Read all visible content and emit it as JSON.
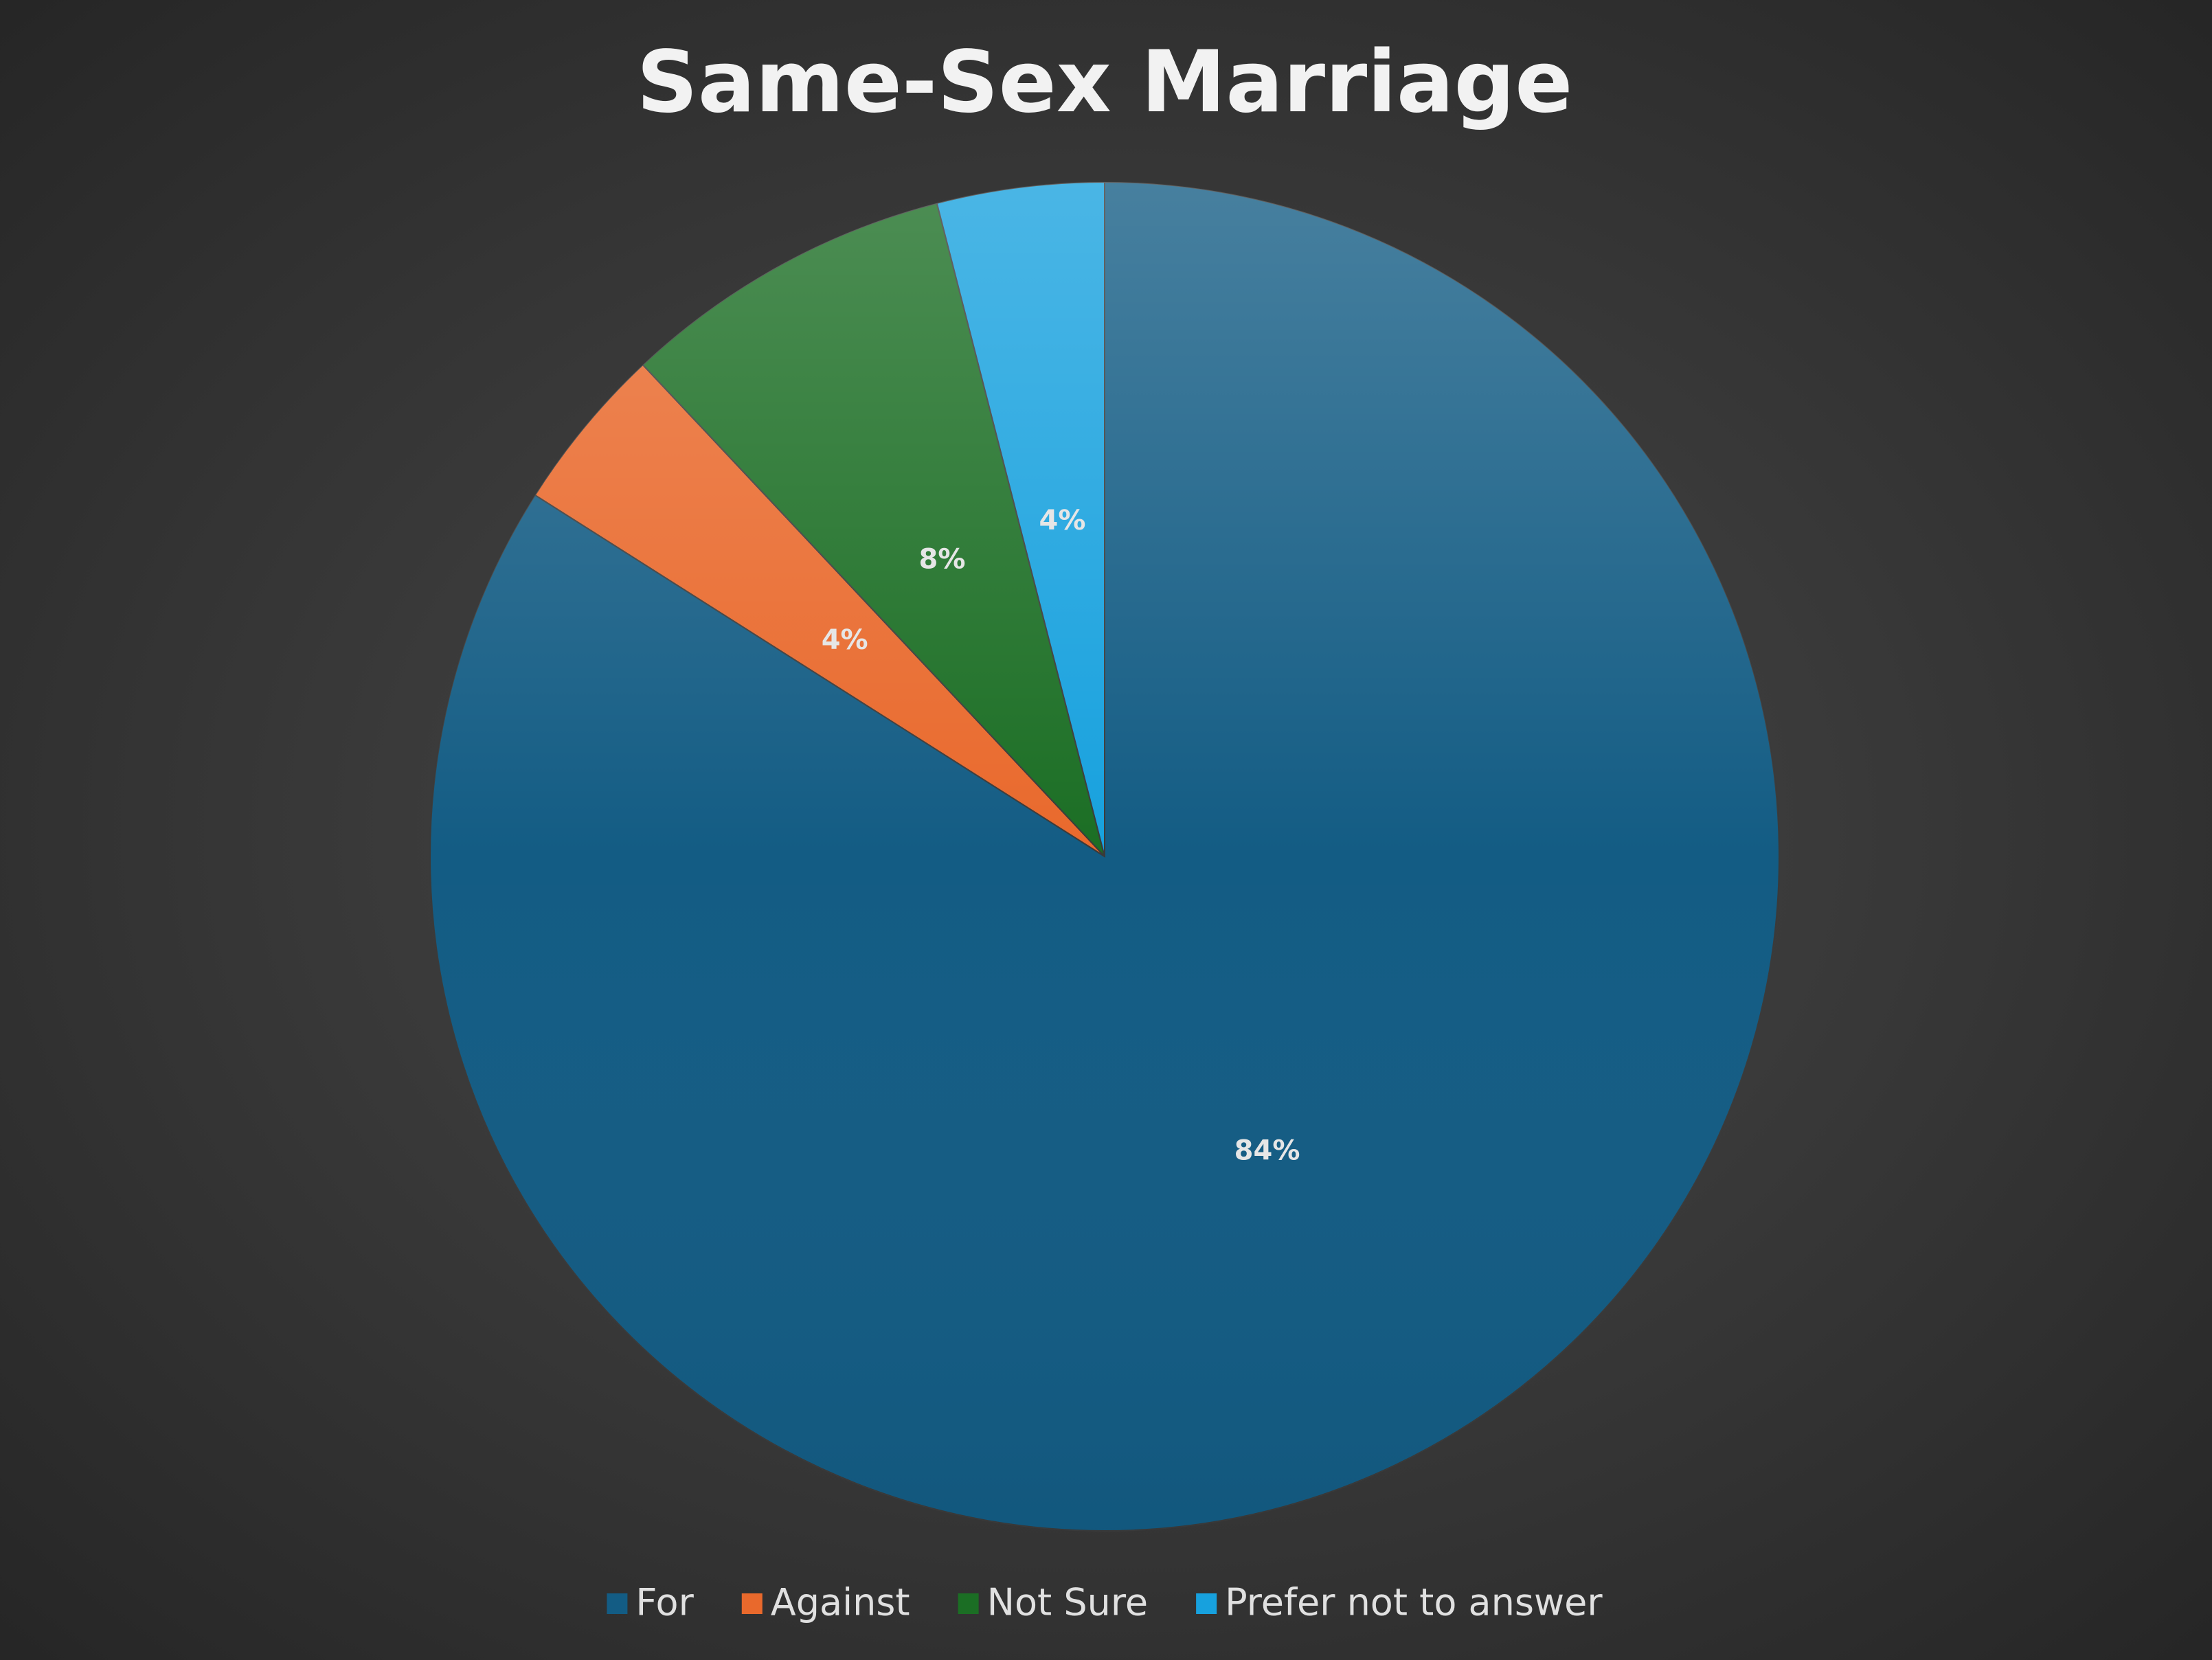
{
  "chart_data": {
    "type": "pie",
    "title": "Same-Sex Marriage",
    "categories": [
      "For",
      "Against",
      "Not Sure",
      "Prefer not to answer"
    ],
    "values": [
      84,
      4,
      8,
      4
    ],
    "value_labels": [
      "84%",
      "4%",
      "8%",
      "4%"
    ],
    "colors": [
      "#135c84",
      "#e9692c",
      "#1b6e24",
      "#17a1de"
    ]
  }
}
